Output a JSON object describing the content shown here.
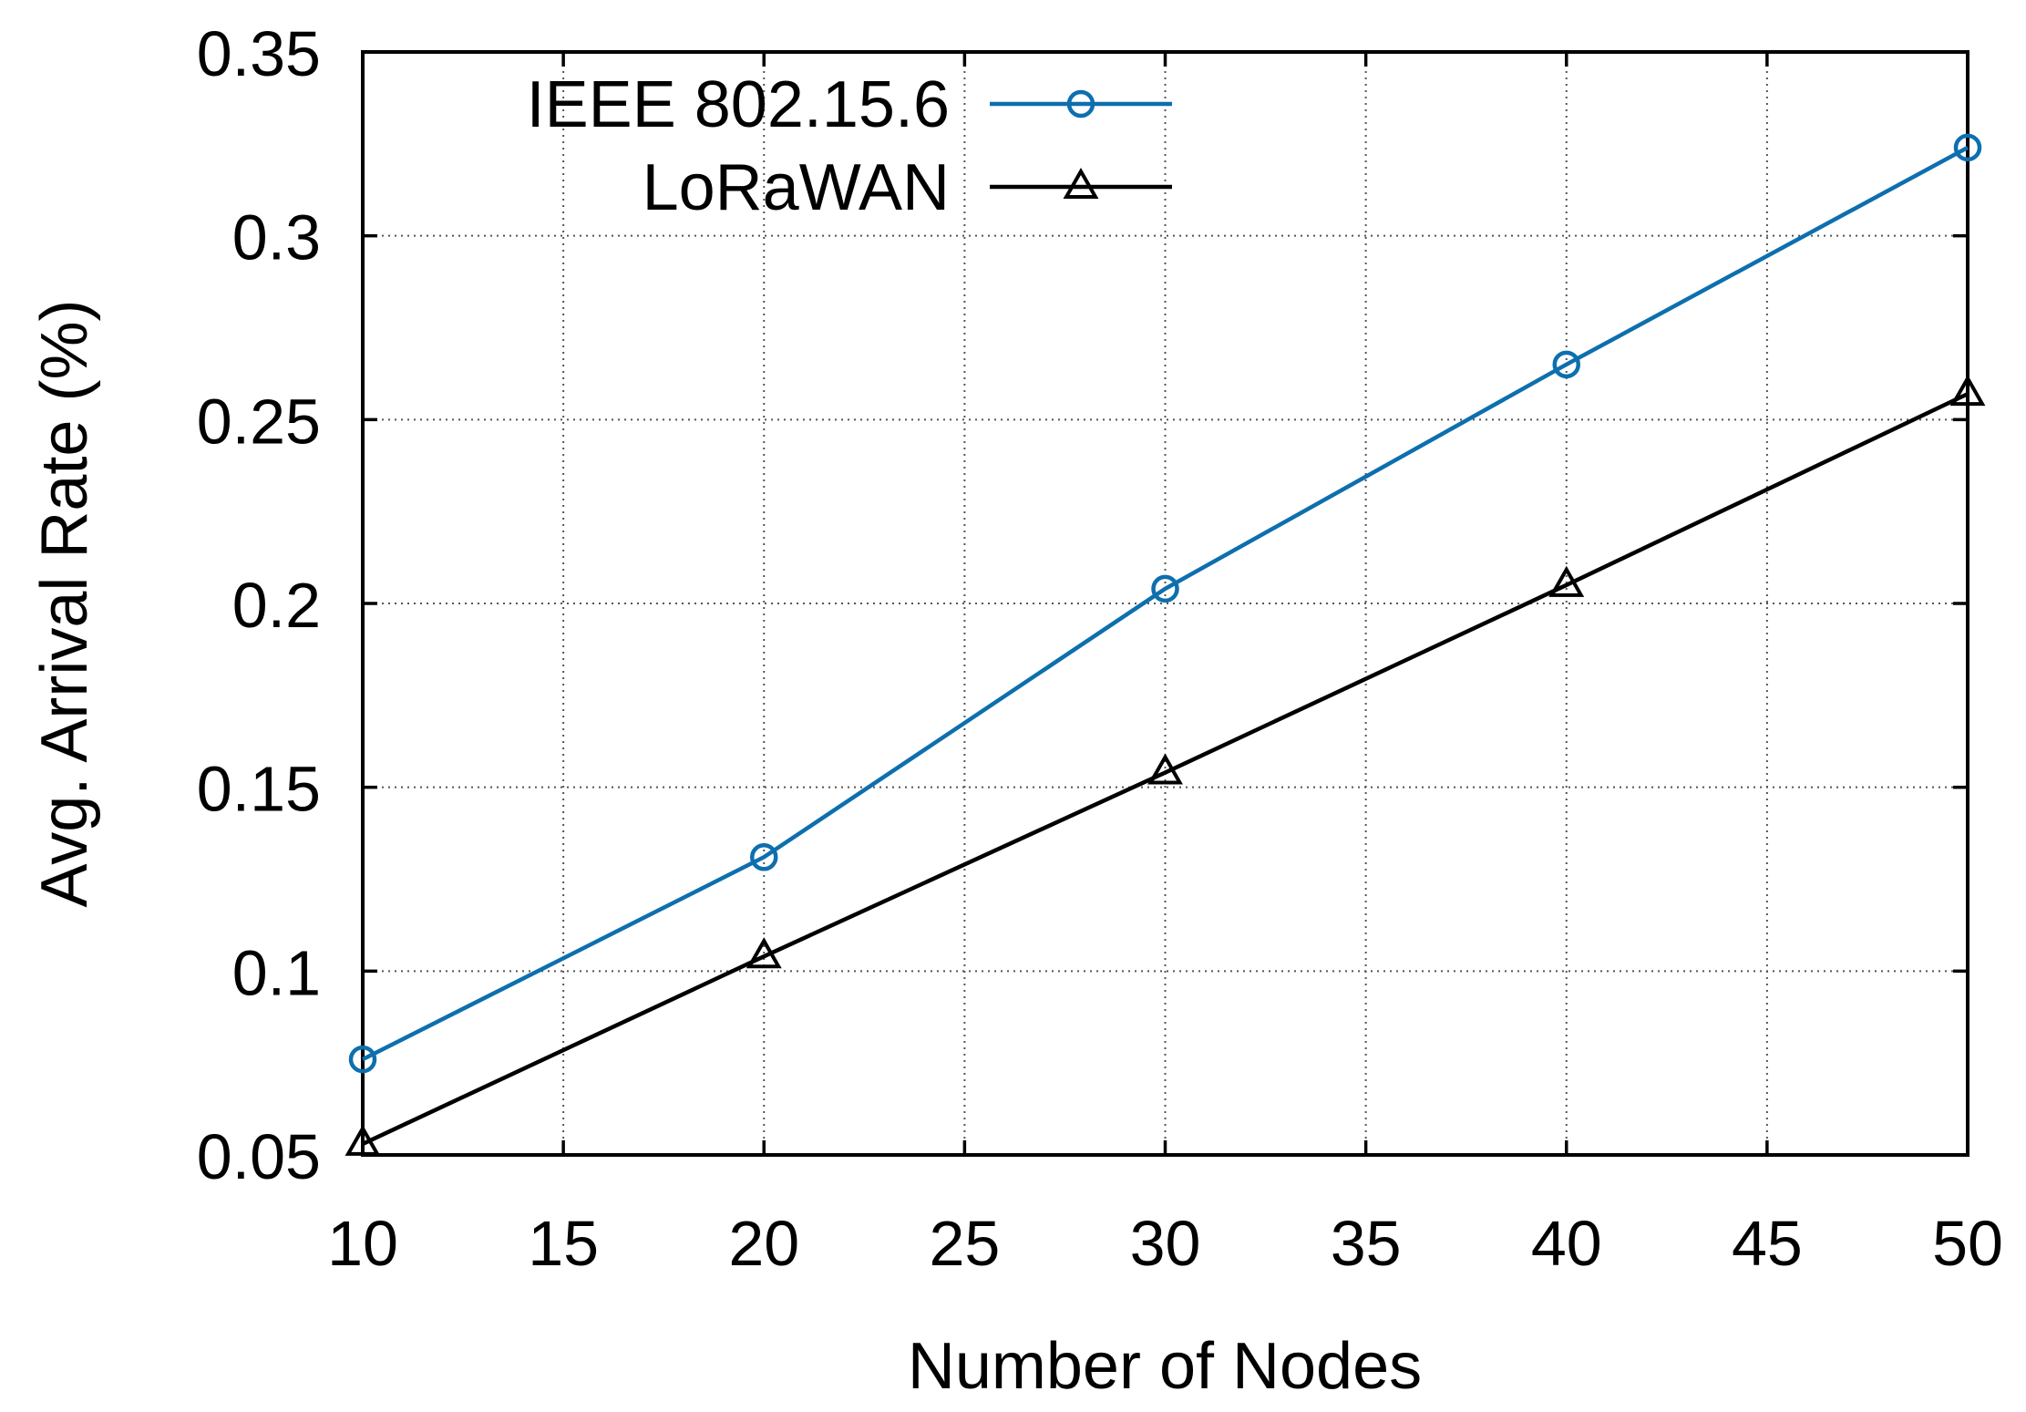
{
  "chart_data": {
    "type": "line",
    "title": "",
    "xlabel": "Number of Nodes",
    "ylabel": "Avg. Arrival Rate (%)",
    "x": [
      10,
      20,
      30,
      40,
      50
    ],
    "series": [
      {
        "name": "IEEE 802.15.6",
        "color": "#0d6fae",
        "marker": "circle",
        "values": [
          0.076,
          0.131,
          0.204,
          0.265,
          0.324
        ]
      },
      {
        "name": "LoRaWAN",
        "color": "#000000",
        "marker": "triangle",
        "values": [
          0.053,
          0.104,
          0.154,
          0.205,
          0.257
        ]
      }
    ],
    "xlim": [
      10,
      50
    ],
    "ylim": [
      0.05,
      0.35
    ],
    "xticks": [
      10,
      15,
      20,
      25,
      30,
      35,
      40,
      45,
      50
    ],
    "xtick_labels": [
      "10",
      "15",
      "20",
      "25",
      "30",
      "35",
      "40",
      "45",
      "50"
    ],
    "yticks": [
      0.05,
      0.1,
      0.15,
      0.2,
      0.25,
      0.3,
      0.35
    ],
    "ytick_labels": [
      "0.05",
      "0.1",
      "0.15",
      "0.2",
      "0.25",
      "0.3",
      "0.35"
    ],
    "grid": true,
    "grid_style": "dotted",
    "legend_position": "top-inside",
    "background_color": "#ffffff",
    "border_color": "#000000"
  }
}
